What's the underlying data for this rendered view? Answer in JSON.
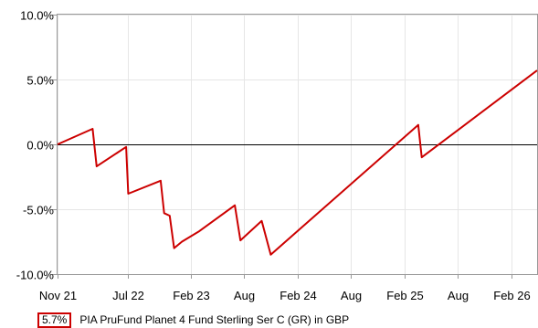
{
  "chart_data": {
    "type": "line",
    "title": "",
    "xlabel": "",
    "ylabel": "",
    "ylim": [
      -10,
      10
    ],
    "xlim": [
      "2021-11-01",
      "2026-05-01"
    ],
    "yticks": [
      "10.0%",
      "5.0%",
      "0.0%",
      "-5.0%",
      "-10.0%"
    ],
    "ytick_values": [
      10,
      5,
      0,
      -5,
      -10
    ],
    "xticks": [
      {
        "label": "Nov 21",
        "date": "2021-11-01"
      },
      {
        "label": "Jul 22",
        "date": "2022-07-01"
      },
      {
        "label": "Feb 23",
        "date": "2023-02-01"
      },
      {
        "label": "Aug",
        "date": "2023-08-01"
      },
      {
        "label": "Feb 24",
        "date": "2024-02-01"
      },
      {
        "label": "Aug",
        "date": "2024-08-01"
      },
      {
        "label": "Feb 25",
        "date": "2025-02-01"
      },
      {
        "label": "Aug",
        "date": "2025-08-01"
      },
      {
        "label": "Feb 26",
        "date": "2026-02-01"
      }
    ],
    "grid": true,
    "legend_position": "bottom",
    "colors": {
      "series": "#cc0000",
      "zero_line": "#000000",
      "grid": "#e6e6e6",
      "axis": "#999999"
    },
    "series": [
      {
        "name": "PIA PruFund Planet 4 Fund Sterling Ser C (GR) in GBP",
        "last_value": "5.7%",
        "x": [
          "2021-11-01",
          "2022-03-01",
          "2022-03-15",
          "2022-06-24",
          "2022-07-01",
          "2022-10-20",
          "2022-11-01",
          "2022-11-20",
          "2022-12-05",
          "2023-01-01",
          "2023-03-01",
          "2023-07-01",
          "2023-07-20",
          "2023-10-01",
          "2023-11-01",
          "2025-03-20",
          "2025-04-01",
          "2026-05-01"
        ],
        "y": [
          0,
          1.2,
          -1.7,
          -0.2,
          -3.8,
          -2.8,
          -5.3,
          -5.5,
          -8.0,
          -7.5,
          -6.7,
          -4.7,
          -7.4,
          -5.9,
          -8.5,
          1.5,
          -1.0,
          5.7
        ]
      }
    ]
  }
}
